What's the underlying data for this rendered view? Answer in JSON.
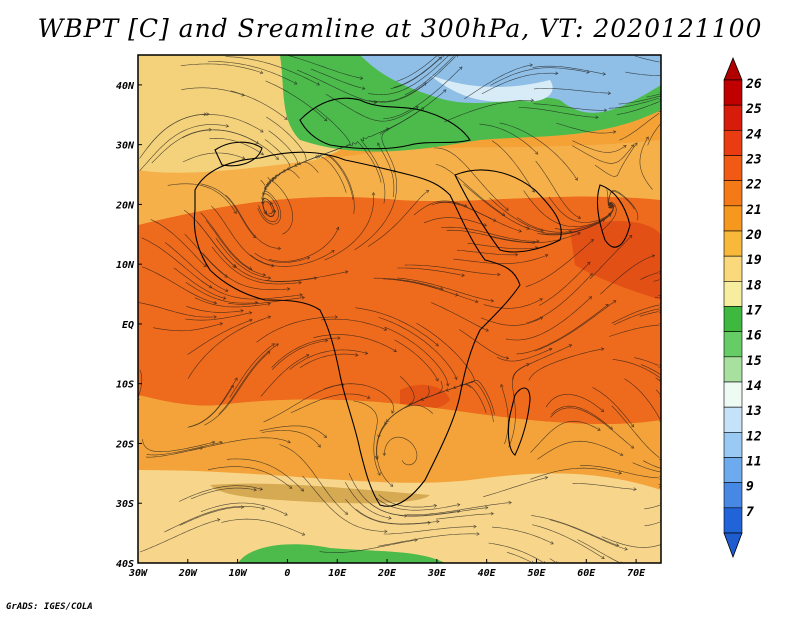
{
  "title": "WBPT [C] and Sreamline at 300hPa, VT: 2020121100",
  "credit": "GrADS: IGES/COLA",
  "map": {
    "lon_labels": [
      "30W",
      "20W",
      "10W",
      "0",
      "10E",
      "20E",
      "30E",
      "40E",
      "50E",
      "60E",
      "70E"
    ],
    "lat_labels": [
      "40N",
      "30N",
      "20N",
      "10N",
      "EQ",
      "10S",
      "20S",
      "30S",
      "40S"
    ],
    "lon_range": [
      -30,
      75
    ],
    "lat_range": [
      -40,
      45
    ]
  },
  "colorbar": {
    "levels": [
      "26",
      "25",
      "24",
      "23",
      "22",
      "21",
      "20",
      "19",
      "18",
      "17",
      "16",
      "15",
      "14",
      "13",
      "12",
      "11",
      "9",
      "7"
    ],
    "colors": [
      "#c00000",
      "#d81c0c",
      "#ea3c12",
      "#f05a14",
      "#f47a18",
      "#f6981e",
      "#f8b83a",
      "#fad87c",
      "#f6ee9e",
      "#3eb83e",
      "#66cc66",
      "#a8e0a0",
      "#eefaf4",
      "#c6e2f8",
      "#9acaf4",
      "#6eaaee",
      "#4688e4",
      "#2064d8"
    ],
    "top_color": "#b00000",
    "bottom_color": "#1e5cd0"
  },
  "regions": [
    {
      "name": "cold-north-strip",
      "color": "#8fbfe6"
    },
    {
      "name": "green-north-band",
      "color": "#4cbb4c"
    },
    {
      "name": "yellow-subtropical-band",
      "color": "#f4d27c"
    },
    {
      "name": "orange-midlat-band",
      "color": "#f4a236"
    },
    {
      "name": "red-tropical-band",
      "color": "#ee6a1c"
    },
    {
      "name": "orange-south-band",
      "color": "#f3a33a"
    },
    {
      "name": "yellow-south-band",
      "color": "#f7d58a"
    },
    {
      "name": "green-south-patch",
      "color": "#4cbb4c"
    }
  ]
}
